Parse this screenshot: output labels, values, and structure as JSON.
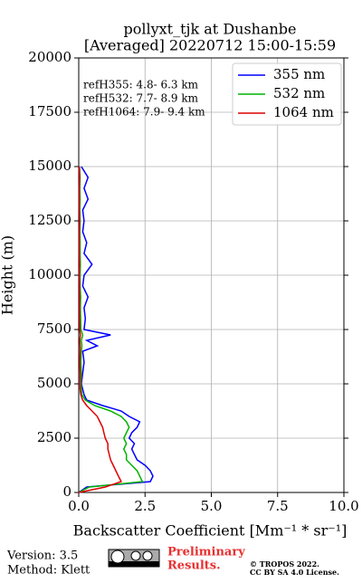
{
  "chart_data": {
    "type": "line",
    "title": [
      "pollyxt_tjk at Dushanbe",
      "[Averaged] 20220712 15:00-15:59"
    ],
    "x_label": "Backscatter Coefficient [Mm⁻¹ * sr⁻¹]",
    "y_label": "Height (m)",
    "annotations": [
      "refH355:  4.8- 6.3 km",
      "refH532:  7.7- 8.9 km",
      "refH1064:  7.9- 9.4 km"
    ],
    "xlim": [
      0,
      10
    ],
    "ylim": [
      0,
      20000
    ],
    "xticks": [
      {
        "value": 0,
        "label": "0.0"
      },
      2.5,
      {
        "value": 5,
        "label": "5.0"
      },
      7.5,
      {
        "value": 10,
        "label": "10.0"
      }
    ],
    "yticks": [
      0,
      2500,
      5000,
      7500,
      10000,
      12500,
      15000,
      17500,
      20000
    ],
    "grid": true,
    "legend": "upper right",
    "heights": [
      0,
      250,
      500,
      750,
      1000,
      1250,
      1500,
      1750,
      2000,
      2250,
      2500,
      2750,
      3000,
      3250,
      3500,
      3750,
      4000,
      4250,
      4500,
      4750,
      5000,
      5500,
      6000,
      6500,
      6750,
      7000,
      7250,
      7500,
      8000,
      8500,
      9000,
      9500,
      10000,
      10500,
      11000,
      11500,
      12000,
      12500,
      13000,
      13500,
      14000,
      14500,
      15000
    ],
    "series": [
      {
        "name": "355 nm",
        "color": "#0000ff",
        "values": [
          0,
          0.3,
          2.7,
          2.8,
          2.7,
          2.5,
          2.2,
          2.1,
          2.0,
          2.1,
          1.9,
          2.0,
          2.2,
          2.3,
          1.9,
          1.6,
          0.9,
          0.3,
          0.2,
          0.15,
          0.1,
          0.15,
          0.2,
          0.15,
          0.7,
          0.3,
          1.2,
          0.2,
          0.25,
          0.2,
          0.35,
          0.15,
          0.2,
          0.5,
          0.2,
          0.3,
          0.15,
          0.2,
          0.15,
          0.35,
          0.2,
          0.35,
          0.1
        ]
      },
      {
        "name": "532 nm",
        "color": "#00b400",
        "values": [
          0,
          0.4,
          2.4,
          2.3,
          2.2,
          2.0,
          1.8,
          1.8,
          1.7,
          1.8,
          1.7,
          1.8,
          1.9,
          1.8,
          1.6,
          1.2,
          0.6,
          0.25,
          0.12,
          0.1,
          0.08,
          0.1,
          0.08,
          0.1,
          0.12,
          0.1,
          0.15,
          0.08,
          0.07,
          0.06,
          0.07,
          0.05,
          0.05,
          0.06,
          0.05,
          0.05,
          0.04,
          0.05,
          0.04,
          0.05,
          0.04,
          0.05,
          0.03
        ]
      },
      {
        "name": "1064 nm",
        "color": "#e00000",
        "values": [
          0,
          1.0,
          1.6,
          1.5,
          1.4,
          1.3,
          1.2,
          1.15,
          1.1,
          1.1,
          1.0,
          0.95,
          0.9,
          0.8,
          0.7,
          0.5,
          0.3,
          0.15,
          0.08,
          0.05,
          0.05,
          0.05,
          0.04,
          0.05,
          0.05,
          0.04,
          0.06,
          0.04,
          0.03,
          0.03,
          0.03,
          0.03,
          0.02,
          0.03,
          0.02,
          0.02,
          0.02,
          0.03,
          0.02,
          0.02,
          0.02,
          0.03,
          0.02
        ]
      }
    ]
  },
  "footer": {
    "version": "Version: 3.5",
    "method": "Method: Klett",
    "preliminary": [
      "Preliminary",
      "Results."
    ],
    "copyright": [
      "© TROPOS 2022.",
      "CC BY SA 4.0 License."
    ]
  }
}
